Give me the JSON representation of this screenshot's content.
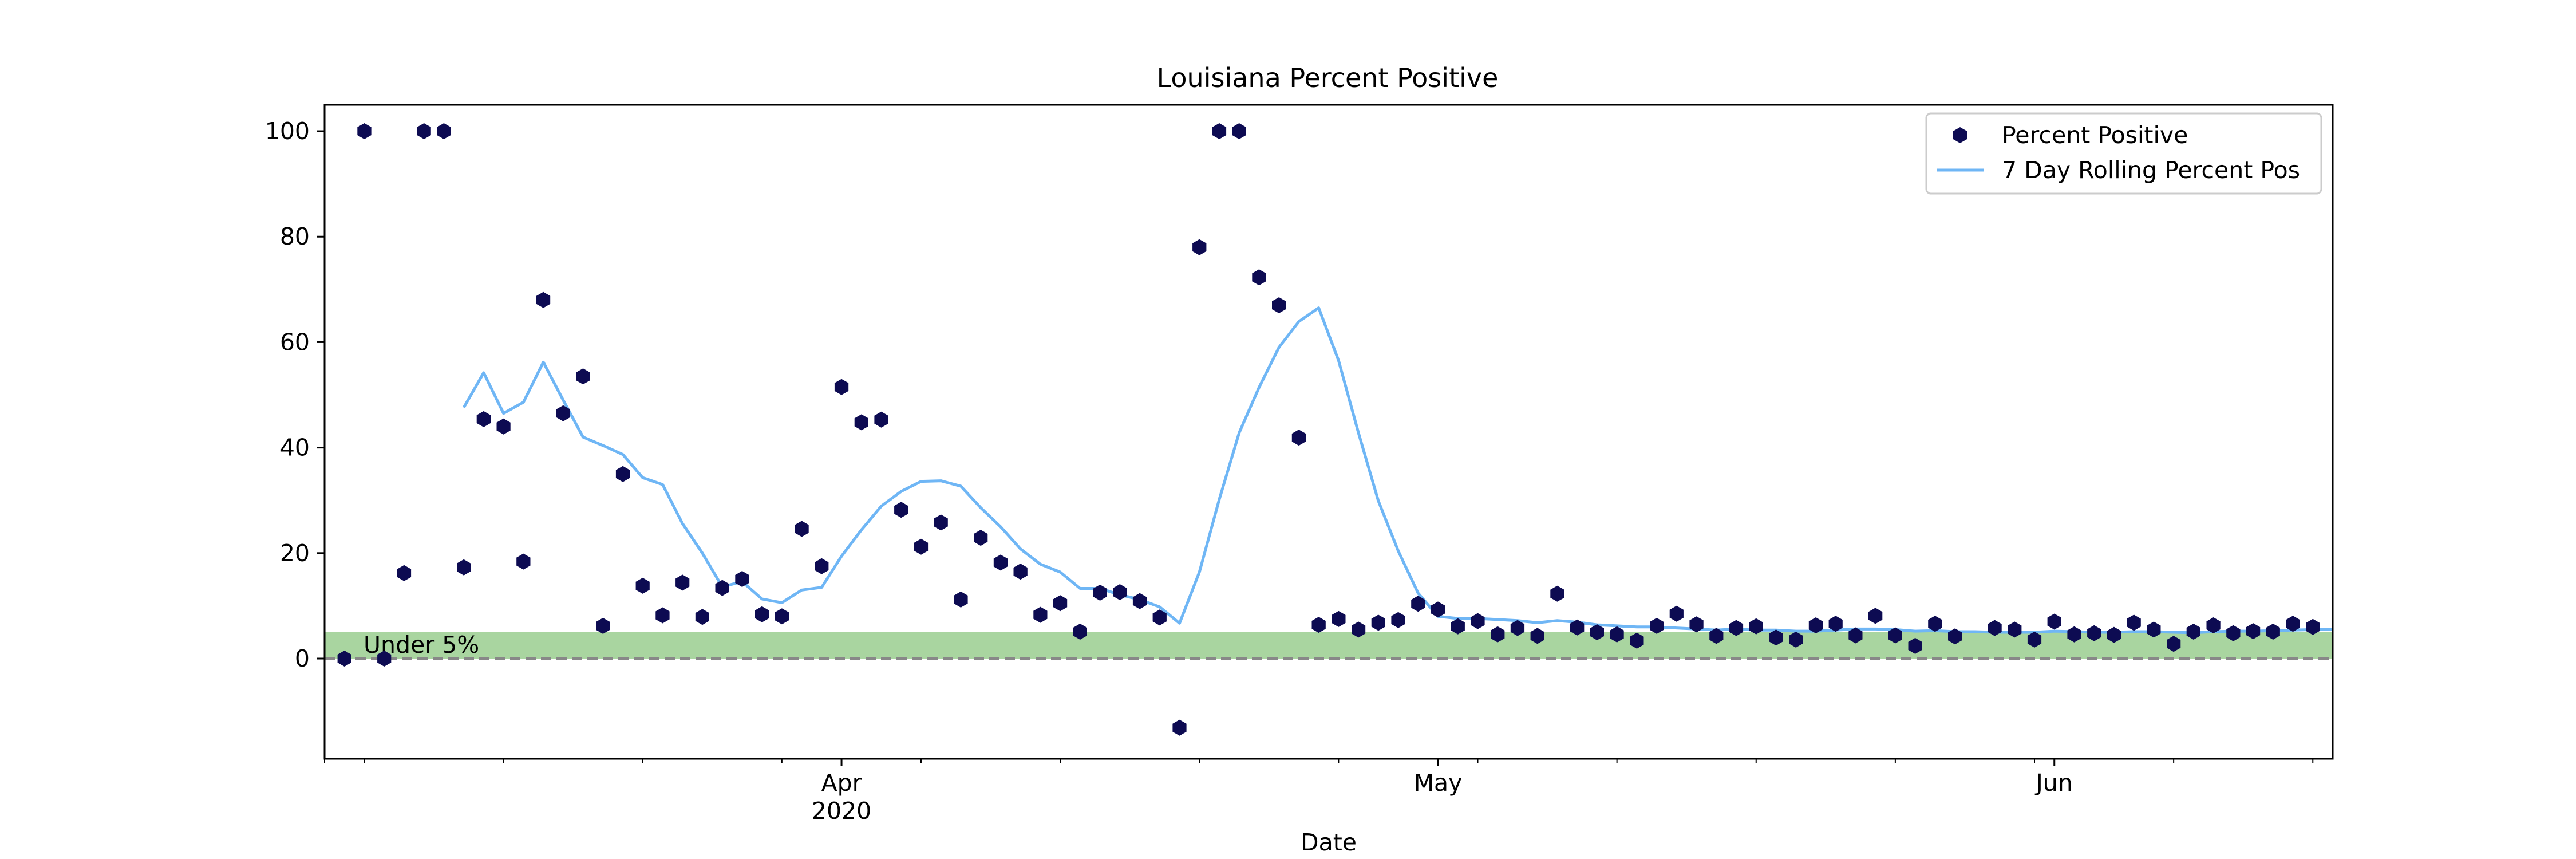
{
  "chart_data": {
    "type": "scatter",
    "title": "Louisiana Percent Positive",
    "xlabel": "Date",
    "ylabel": "",
    "xlim": [
      "2020-03-06",
      "2020-06-15"
    ],
    "ylim": [
      -19,
      105
    ],
    "y_ticks": [
      0,
      20,
      40,
      60,
      80,
      100
    ],
    "x_ticks": [
      {
        "date": "2020-04-01",
        "label": "Apr",
        "sublabel": "2020"
      },
      {
        "date": "2020-05-01",
        "label": "May",
        "sublabel": ""
      },
      {
        "date": "2020-06-01",
        "label": "Jun",
        "sublabel": ""
      }
    ],
    "x_minor_tick_dates": [
      "2020-03-06",
      "2020-03-08",
      "2020-03-15",
      "2020-03-22",
      "2020-03-29",
      "2020-04-05",
      "2020-04-12",
      "2020-04-19",
      "2020-04-26",
      "2020-05-03",
      "2020-05-10",
      "2020-05-17",
      "2020-05-24",
      "2020-05-31",
      "2020-06-07",
      "2020-06-14"
    ],
    "grid": false,
    "legend_position": "top-right",
    "band": {
      "y_from": 0,
      "y_to": 5,
      "label": "Under 5%",
      "color": "#a9d5a0"
    },
    "zero_line": {
      "y": 0,
      "style": "dashed",
      "color": "#888888"
    },
    "series": [
      {
        "name": "Percent Positive",
        "kind": "scatter",
        "color": "#0d0b52",
        "marker": "hexagon",
        "points": [
          [
            "2020-03-07",
            0
          ],
          [
            "2020-03-08",
            100
          ],
          [
            "2020-03-09",
            0
          ],
          [
            "2020-03-10",
            16.2
          ],
          [
            "2020-03-11",
            100
          ],
          [
            "2020-03-12",
            100
          ],
          [
            "2020-03-13",
            17.3
          ],
          [
            "2020-03-14",
            45.4
          ],
          [
            "2020-03-15",
            44
          ],
          [
            "2020-03-16",
            18.4
          ],
          [
            "2020-03-17",
            68
          ],
          [
            "2020-03-18",
            46.5
          ],
          [
            "2020-03-19",
            53.5
          ],
          [
            "2020-03-20",
            6.2
          ],
          [
            "2020-03-21",
            35
          ],
          [
            "2020-03-22",
            13.8
          ],
          [
            "2020-03-23",
            8.2
          ],
          [
            "2020-03-24",
            14.4
          ],
          [
            "2020-03-25",
            7.9
          ],
          [
            "2020-03-26",
            13.4
          ],
          [
            "2020-03-27",
            15.1
          ],
          [
            "2020-03-28",
            8.4
          ],
          [
            "2020-03-29",
            8
          ],
          [
            "2020-03-30",
            24.6
          ],
          [
            "2020-03-31",
            17.5
          ],
          [
            "2020-04-01",
            51.5
          ],
          [
            "2020-04-02",
            44.8
          ],
          [
            "2020-04-03",
            45.3
          ],
          [
            "2020-04-04",
            28.2
          ],
          [
            "2020-04-05",
            21.2
          ],
          [
            "2020-04-06",
            25.8
          ],
          [
            "2020-04-07",
            11.2
          ],
          [
            "2020-04-08",
            22.9
          ],
          [
            "2020-04-09",
            18.2
          ],
          [
            "2020-04-10",
            16.5
          ],
          [
            "2020-04-11",
            8.3
          ],
          [
            "2020-04-12",
            10.5
          ],
          [
            "2020-04-13",
            5.1
          ],
          [
            "2020-04-14",
            12.5
          ],
          [
            "2020-04-15",
            12.6
          ],
          [
            "2020-04-16",
            10.9
          ],
          [
            "2020-04-17",
            7.8
          ],
          [
            "2020-04-18",
            -13.1
          ],
          [
            "2020-04-19",
            78
          ],
          [
            "2020-04-20",
            100
          ],
          [
            "2020-04-21",
            100
          ],
          [
            "2020-04-22",
            72.3
          ],
          [
            "2020-04-23",
            67
          ],
          [
            "2020-04-24",
            41.9
          ],
          [
            "2020-04-25",
            6.4
          ],
          [
            "2020-04-26",
            7.5
          ],
          [
            "2020-04-27",
            5.5
          ],
          [
            "2020-04-28",
            6.8
          ],
          [
            "2020-04-29",
            7.3
          ],
          [
            "2020-04-30",
            10.4
          ],
          [
            "2020-05-01",
            9.3
          ],
          [
            "2020-05-02",
            6.1
          ],
          [
            "2020-05-03",
            7.1
          ],
          [
            "2020-05-04",
            4.6
          ],
          [
            "2020-05-05",
            5.8
          ],
          [
            "2020-05-06",
            4.3
          ],
          [
            "2020-05-07",
            12.3
          ],
          [
            "2020-05-08",
            5.9
          ],
          [
            "2020-05-09",
            5
          ],
          [
            "2020-05-10",
            4.6
          ],
          [
            "2020-05-11",
            3.4
          ],
          [
            "2020-05-12",
            6.2
          ],
          [
            "2020-05-13",
            8.5
          ],
          [
            "2020-05-14",
            6.5
          ],
          [
            "2020-05-15",
            4.3
          ],
          [
            "2020-05-16",
            5.8
          ],
          [
            "2020-05-17",
            6.1
          ],
          [
            "2020-05-18",
            4
          ],
          [
            "2020-05-19",
            3.6
          ],
          [
            "2020-05-20",
            6.3
          ],
          [
            "2020-05-21",
            6.6
          ],
          [
            "2020-05-22",
            4.4
          ],
          [
            "2020-05-23",
            8.1
          ],
          [
            "2020-05-24",
            4.4
          ],
          [
            "2020-05-25",
            2.4
          ],
          [
            "2020-05-26",
            6.6
          ],
          [
            "2020-05-27",
            4.2
          ],
          [
            "2020-05-29",
            5.8
          ],
          [
            "2020-05-30",
            5.5
          ],
          [
            "2020-05-31",
            3.6
          ],
          [
            "2020-06-01",
            7
          ],
          [
            "2020-06-02",
            4.6
          ],
          [
            "2020-06-03",
            4.8
          ],
          [
            "2020-06-04",
            4.5
          ],
          [
            "2020-06-05",
            6.8
          ],
          [
            "2020-06-06",
            5.5
          ],
          [
            "2020-06-07",
            2.8
          ],
          [
            "2020-06-08",
            5.1
          ],
          [
            "2020-06-09",
            6.3
          ],
          [
            "2020-06-10",
            4.8
          ],
          [
            "2020-06-11",
            5.2
          ],
          [
            "2020-06-12",
            5.1
          ],
          [
            "2020-06-13",
            6.6
          ],
          [
            "2020-06-14",
            6
          ]
        ]
      },
      {
        "name": "7 Day Rolling Percent Pos",
        "kind": "line",
        "color": "#6fb6f5",
        "points": [
          [
            "2020-03-13",
            47.6
          ],
          [
            "2020-03-14",
            54.2
          ],
          [
            "2020-03-15",
            46.5
          ],
          [
            "2020-03-16",
            48.6
          ],
          [
            "2020-03-17",
            56.2
          ],
          [
            "2020-03-18",
            49
          ],
          [
            "2020-03-19",
            42
          ],
          [
            "2020-03-20",
            40.4
          ],
          [
            "2020-03-21",
            38.7
          ],
          [
            "2020-03-22",
            34.3
          ],
          [
            "2020-03-23",
            33
          ],
          [
            "2020-03-24",
            25.6
          ],
          [
            "2020-03-25",
            20
          ],
          [
            "2020-03-26",
            13.6
          ],
          [
            "2020-03-27",
            14.6
          ],
          [
            "2020-03-28",
            11.3
          ],
          [
            "2020-03-29",
            10.6
          ],
          [
            "2020-03-30",
            13
          ],
          [
            "2020-03-31",
            13.5
          ],
          [
            "2020-04-01",
            19.4
          ],
          [
            "2020-04-02",
            24.4
          ],
          [
            "2020-04-03",
            28.9
          ],
          [
            "2020-04-04",
            31.7
          ],
          [
            "2020-04-05",
            33.6
          ],
          [
            "2020-04-06",
            33.7
          ],
          [
            "2020-04-07",
            32.7
          ],
          [
            "2020-04-08",
            28.6
          ],
          [
            "2020-04-09",
            25
          ],
          [
            "2020-04-10",
            20.8
          ],
          [
            "2020-04-11",
            17.9
          ],
          [
            "2020-04-12",
            16.4
          ],
          [
            "2020-04-13",
            13.3
          ],
          [
            "2020-04-14",
            13.3
          ],
          [
            "2020-04-15",
            12.1
          ],
          [
            "2020-04-16",
            11.2
          ],
          [
            "2020-04-17",
            9.8
          ],
          [
            "2020-04-18",
            6.7
          ],
          [
            "2020-04-19",
            16.4
          ],
          [
            "2020-04-20",
            30.2
          ],
          [
            "2020-04-21",
            42.8
          ],
          [
            "2020-04-22",
            51.4
          ],
          [
            "2020-04-23",
            59
          ],
          [
            "2020-04-24",
            63.9
          ],
          [
            "2020-04-25",
            66.5
          ],
          [
            "2020-04-26",
            56.5
          ],
          [
            "2020-04-27",
            42.8
          ],
          [
            "2020-04-28",
            29.9
          ],
          [
            "2020-04-29",
            20.4
          ],
          [
            "2020-04-30",
            12.4
          ],
          [
            "2020-05-01",
            8
          ],
          [
            "2020-05-02",
            7.6
          ],
          [
            "2020-05-03",
            7.6
          ],
          [
            "2020-05-04",
            7.4
          ],
          [
            "2020-05-05",
            7.2
          ],
          [
            "2020-05-06",
            6.8
          ],
          [
            "2020-05-07",
            7.2
          ],
          [
            "2020-05-08",
            6.9
          ],
          [
            "2020-05-09",
            6.4
          ],
          [
            "2020-05-10",
            6.2
          ],
          [
            "2020-05-11",
            6
          ],
          [
            "2020-05-12",
            6
          ],
          [
            "2020-05-13",
            5.8
          ],
          [
            "2020-05-14",
            5.6
          ],
          [
            "2020-05-15",
            5.4
          ],
          [
            "2020-05-16",
            5.6
          ],
          [
            "2020-05-17",
            5.4
          ],
          [
            "2020-05-18",
            5.4
          ],
          [
            "2020-05-19",
            5.2
          ],
          [
            "2020-05-20",
            5.2
          ],
          [
            "2020-05-21",
            5.4
          ],
          [
            "2020-05-22",
            5.6
          ],
          [
            "2020-05-23",
            5.6
          ],
          [
            "2020-05-24",
            5.5
          ],
          [
            "2020-05-25",
            5.2
          ],
          [
            "2020-05-26",
            5.3
          ],
          [
            "2020-05-27",
            5.1
          ],
          [
            "2020-05-28",
            5.1
          ],
          [
            "2020-05-29",
            5
          ],
          [
            "2020-05-30",
            5
          ],
          [
            "2020-05-31",
            5
          ],
          [
            "2020-06-01",
            5.2
          ],
          [
            "2020-06-02",
            5.1
          ],
          [
            "2020-06-03",
            5
          ],
          [
            "2020-06-04",
            5
          ],
          [
            "2020-06-05",
            5.1
          ],
          [
            "2020-06-06",
            5.1
          ],
          [
            "2020-06-07",
            5
          ],
          [
            "2020-06-08",
            4.9
          ],
          [
            "2020-06-09",
            5.1
          ],
          [
            "2020-06-10",
            5.2
          ],
          [
            "2020-06-11",
            5.2
          ],
          [
            "2020-06-12",
            5.3
          ],
          [
            "2020-06-13",
            5.4
          ],
          [
            "2020-06-14",
            5.5
          ],
          [
            "2020-06-15",
            5.5
          ]
        ]
      }
    ]
  }
}
